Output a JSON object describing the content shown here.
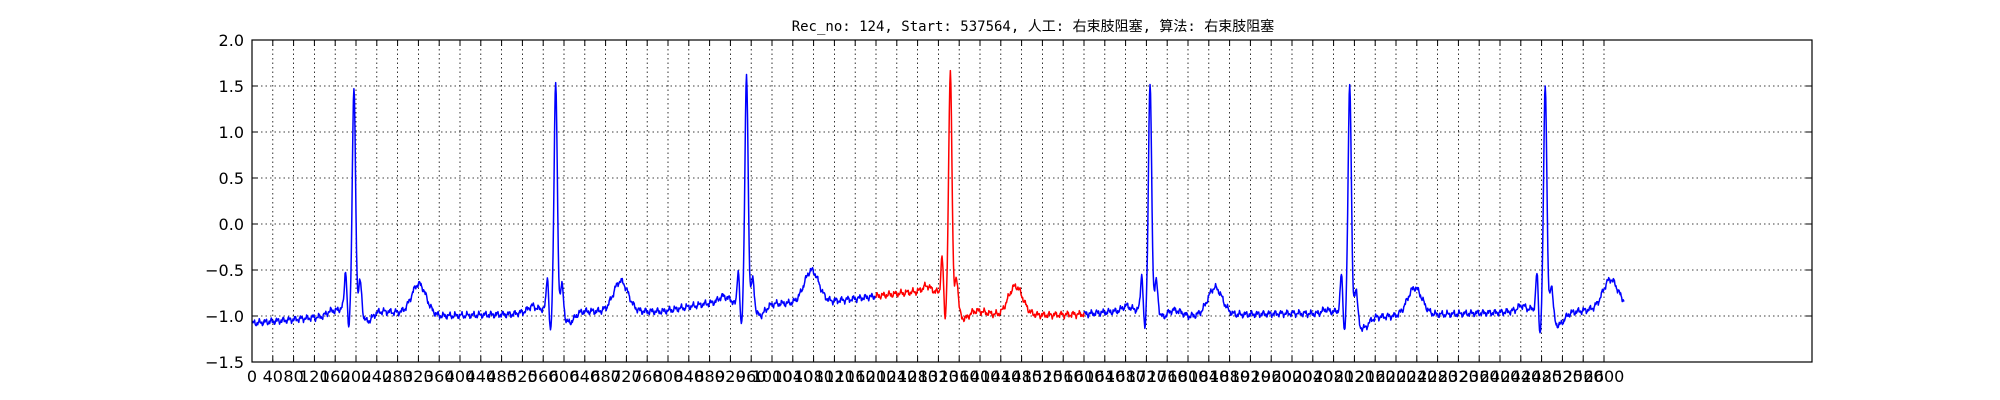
{
  "chart_data": {
    "type": "line",
    "title": "Rec_no: 124, Start: 537564, 人工: 右束肢阻塞, 算法: 右束肢阻塞",
    "xlabel": "",
    "ylabel": "",
    "xlim": [
      0,
      3000
    ],
    "ylim": [
      -1.5,
      2.0
    ],
    "grid": true,
    "yticks": [
      -1.5,
      -1.0,
      -0.5,
      0.0,
      0.5,
      1.0,
      1.5,
      2.0
    ],
    "ytick_labels": [
      "−1.5",
      "−1.0",
      "−0.5",
      "0.0",
      "0.5",
      "1.0",
      "1.5",
      "2.0"
    ],
    "xticks": [
      0,
      40,
      80,
      120,
      160,
      200,
      240,
      280,
      320,
      360,
      400,
      440,
      480,
      520,
      560,
      600,
      640,
      680,
      720,
      760,
      800,
      840,
      880,
      920,
      960,
      1000,
      1040,
      1080,
      1120,
      1160,
      1200,
      1240,
      1280,
      1320,
      1360,
      1400,
      1440,
      1480,
      1520,
      1560,
      1600,
      1640,
      1680,
      1720,
      1760,
      1800,
      1840,
      1880,
      1920,
      1960,
      2000,
      2040,
      2080,
      2120,
      2160,
      2200,
      2240,
      2280,
      2320,
      2360,
      2400,
      2440,
      2480,
      2520,
      2560,
      2600
    ],
    "series_colors": [
      "#0000ff",
      "#ff0000"
    ],
    "highlight_range": [
      1200,
      1600
    ],
    "signal": {
      "length": 2640,
      "baseline_points": [
        [
          0,
          -1.08
        ],
        [
          150,
          -1.0
        ],
        [
          180,
          -0.88
        ],
        [
          189,
          -0.92
        ],
        [
          360,
          -1.0
        ],
        [
          500,
          -0.98
        ],
        [
          560,
          -0.92
        ],
        [
          569,
          -0.95
        ],
        [
          790,
          -0.95
        ],
        [
          920,
          -0.82
        ],
        [
          930,
          -0.88
        ],
        [
          1100,
          -0.85
        ],
        [
          1300,
          -0.72
        ],
        [
          1330,
          -0.75
        ],
        [
          1350,
          -0.88
        ],
        [
          1440,
          -1.0
        ],
        [
          1600,
          -0.98
        ],
        [
          1700,
          -0.93
        ],
        [
          1760,
          -0.88
        ],
        [
          1800,
          -1.0
        ],
        [
          2000,
          -0.97
        ],
        [
          2070,
          -0.98
        ],
        [
          2100,
          -0.92
        ],
        [
          2109,
          -1.02
        ],
        [
          2400,
          -0.96
        ],
        [
          2470,
          -0.92
        ],
        [
          2486,
          -1.0
        ],
        [
          2640,
          -0.88
        ]
      ],
      "beats": [
        {
          "r": 196,
          "peak": 1.42,
          "s": -0.3,
          "t_amp": 0.33
        },
        {
          "r": 584,
          "peak": 1.48,
          "s": -0.35,
          "t_amp": 0.33
        },
        {
          "r": 951,
          "peak": 1.55,
          "s": -0.3,
          "t_amp": 0.35
        },
        {
          "r": 1343,
          "peak": 1.62,
          "s": -0.25,
          "t_amp": 0.32
        },
        {
          "r": 1727,
          "peak": 1.47,
          "s": -0.32,
          "t_amp": 0.3
        },
        {
          "r": 2111,
          "peak": 1.49,
          "s": -0.35,
          "t_amp": 0.3
        },
        {
          "r": 2487,
          "peak": 1.48,
          "s": -0.3,
          "t_amp": 0.3
        }
      ]
    }
  }
}
